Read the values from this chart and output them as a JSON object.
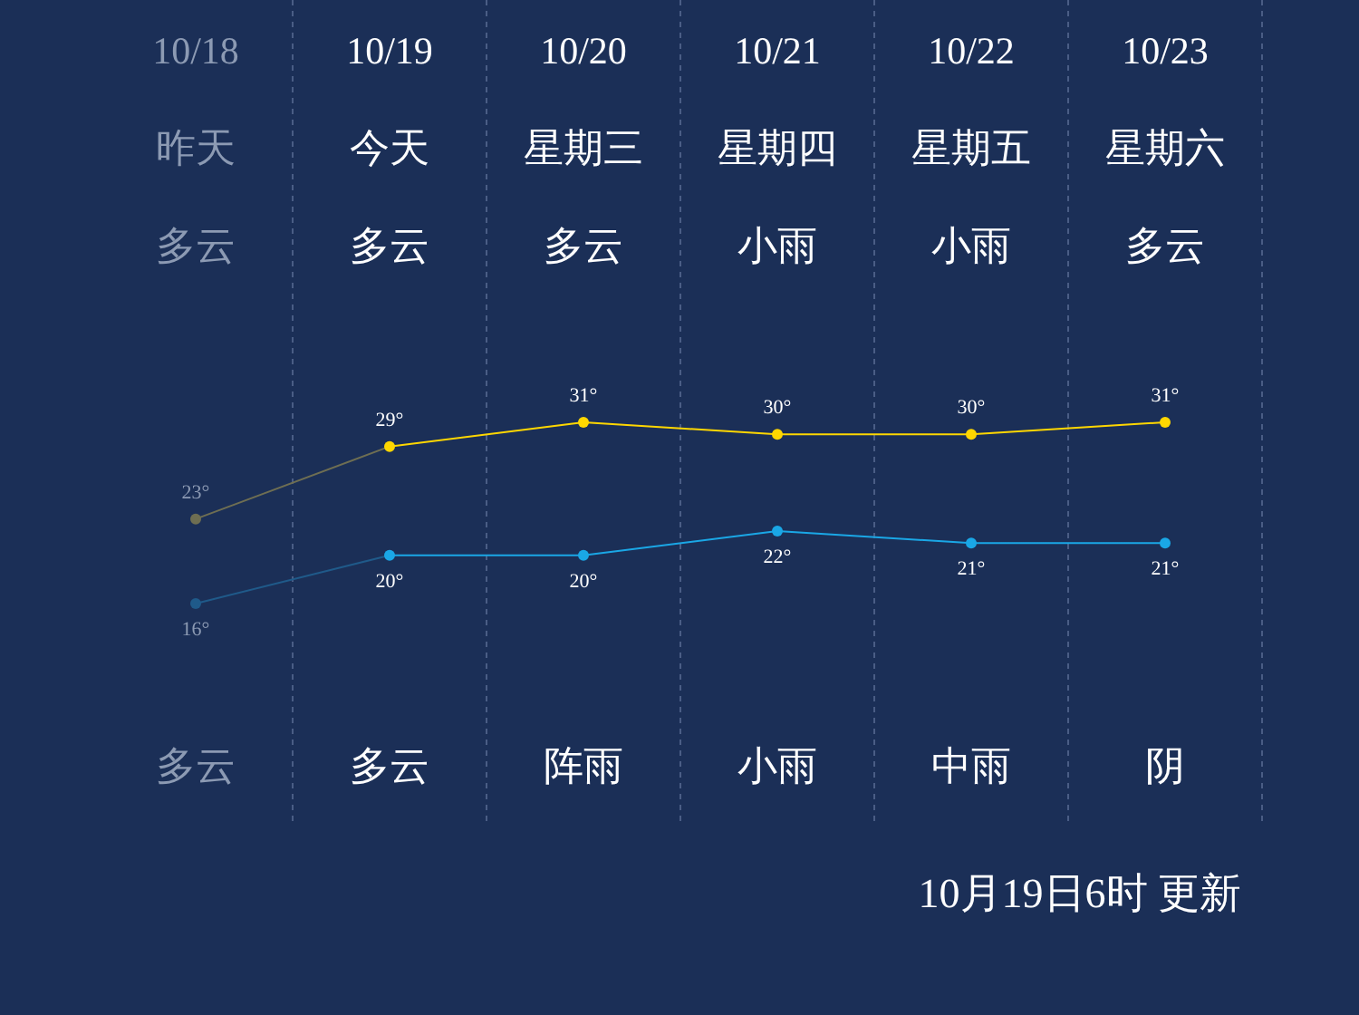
{
  "chart_data": {
    "type": "line",
    "categories": [
      "10/18",
      "10/19",
      "10/20",
      "10/21",
      "10/22",
      "10/23"
    ],
    "series": [
      {
        "color": "#ffd700",
        "colors": [
          "#6e6e52",
          "#ffd700",
          "#ffd700",
          "#ffd700",
          "#ffd700",
          "#ffd700"
        ],
        "values": [
          23,
          29,
          31,
          30,
          30,
          31
        ],
        "value_labels": [
          "23°",
          "29°",
          "31°",
          "30°",
          "30°",
          "31°"
        ]
      },
      {
        "color": "#1aa7e6",
        "colors": [
          "#1f5a8a",
          "#1aa7e6",
          "#1aa7e6",
          "#1aa7e6",
          "#1aa7e6",
          "#1aa7e6"
        ],
        "values": [
          16,
          20,
          20,
          22,
          21,
          21
        ],
        "value_labels": [
          "16°",
          "20°",
          "20°",
          "22°",
          "21°",
          "21°"
        ]
      }
    ],
    "marker": "circle",
    "line_style": "solid",
    "grid": "x",
    "annotations": [
      "昨天",
      "今天",
      "星期三",
      "星期四",
      "星期五",
      "星期六",
      "多云",
      "多云",
      "多云",
      "小雨",
      "小雨",
      "多云",
      "多云",
      "多云",
      "阵雨",
      "小雨",
      "中雨",
      "阴",
      "10月19日6时 更新"
    ]
  }
}
